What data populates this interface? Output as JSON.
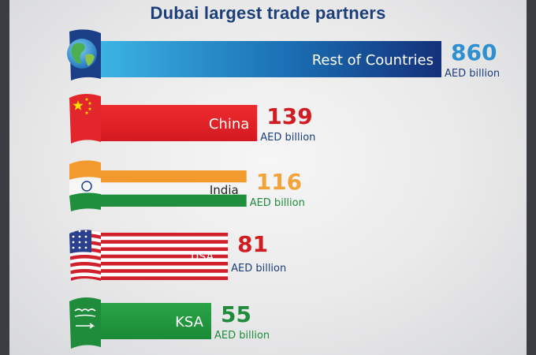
{
  "chart_data": {
    "type": "bar",
    "orientation": "horizontal",
    "title": "Dubai largest trade partners",
    "categories": [
      "Rest of Countries",
      "China",
      "India",
      "USA",
      "KSA"
    ],
    "values": [
      860,
      139,
      116,
      81,
      55
    ],
    "value_labels": [
      "860",
      "139",
      "116",
      "81",
      "55"
    ],
    "unit": "AED billion",
    "flag_icons": [
      "globe-icon",
      "china-flag-icon",
      "india-flag-icon",
      "usa-flag-icon",
      "ksa-flag-icon"
    ],
    "colors": {
      "title": "#1c3f7a",
      "rest_value": "#2f8fcf",
      "china_value": "#d01c23",
      "india_value": "#f2a33a",
      "usa_value": "#d01c23",
      "ksa_value": "#1e8c3a",
      "unit_blue": "#1c3f7a",
      "unit_green": "#1e8c3a"
    }
  }
}
